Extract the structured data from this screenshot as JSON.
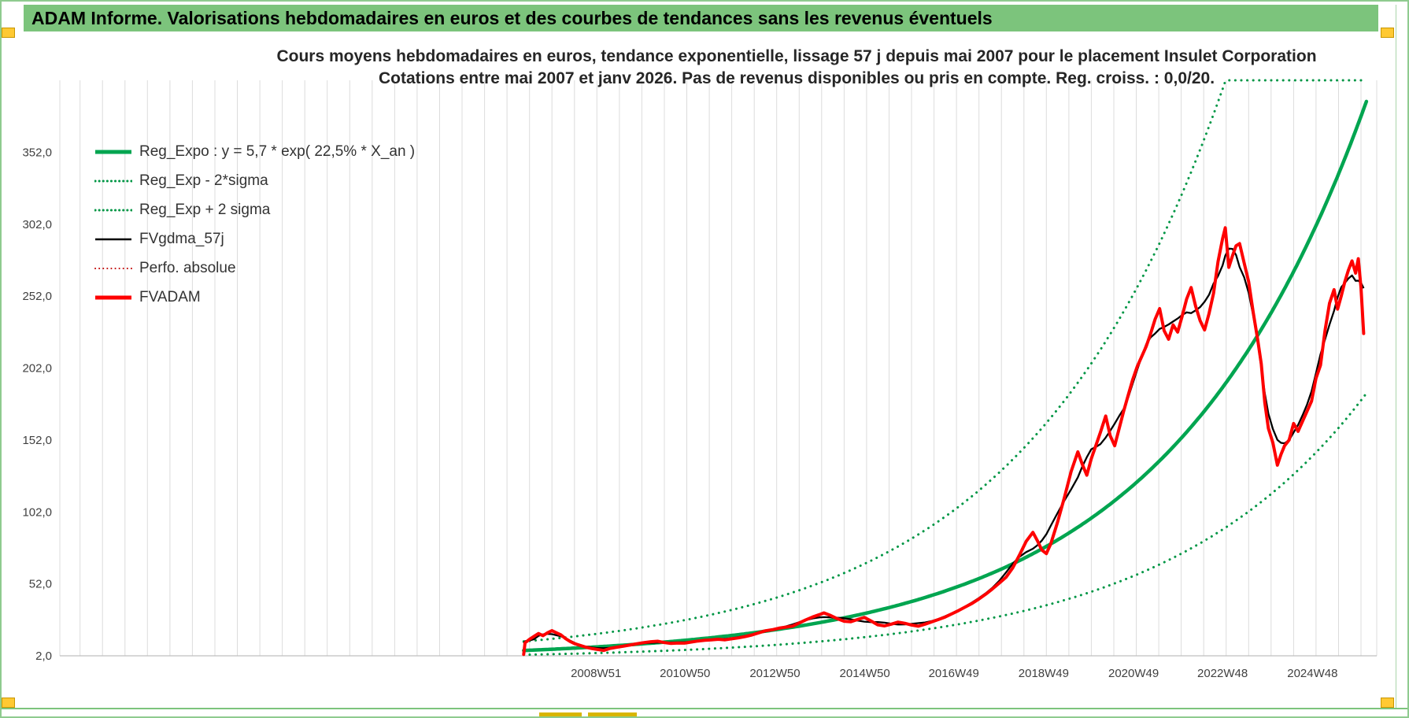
{
  "header": {
    "title": "ADAM Informe. Valorisations hebdomadaires en euros et des courbes de tendances sans les revenus éventuels"
  },
  "chart": {
    "title_line1": "Cours moyens hebdomadaires en euros, tendance exponentielle, lissage 57 j depuis mai 2007 pour le placement Insulet Corporation",
    "title_line2": "Cotations entre mai 2007 et janv 2026. Pas de revenus disponibles ou pris en compte. Reg. croiss. : 0,0/20.",
    "colors": {
      "header_bg": "#7CC47C",
      "regression": "#00A550",
      "sigma_band": "#009645",
      "fvgdma": "#000000",
      "perfo": "#C00000",
      "fvadam": "#FE0000",
      "grid": "#DCDCDC",
      "axis_line": "#BFBFBF",
      "axis_text": "#404040",
      "handle": "#FFC933"
    }
  },
  "chart_data": {
    "type": "line",
    "title": "Cours moyens hebdomadaires en euros, tendance exponentielle, lissage 57 j depuis mai 2007 pour le placement Insulet Corporation",
    "subtitle": "Cotations entre mai 2007 et janv 2026. Pas de revenus disponibles ou pris en compte. Reg. croiss. : 0,0/20.",
    "xlabel": "",
    "ylabel": "",
    "grid": "vertical-only",
    "legend_position": "top-left-inside",
    "x_axis": {
      "range": [
        1997.05,
        2026.35
      ],
      "gridline_step_years": 0.5,
      "ticks": [
        {
          "label": "2008W51",
          "year": 2008.98
        },
        {
          "label": "2010W50",
          "year": 2010.96
        },
        {
          "label": "2012W50",
          "year": 2012.96
        },
        {
          "label": "2014W50",
          "year": 2014.96
        },
        {
          "label": "2016W49",
          "year": 2016.94
        },
        {
          "label": "2018W49",
          "year": 2018.94
        },
        {
          "label": "2020W49",
          "year": 2020.94
        },
        {
          "label": "2022W48",
          "year": 2022.92
        },
        {
          "label": "2024W48",
          "year": 2024.92
        }
      ]
    },
    "y_axis": {
      "range": [
        2,
        402
      ],
      "ticks": [
        {
          "label": "2,0",
          "value": 2
        },
        {
          "label": "52,0",
          "value": 52
        },
        {
          "label": "102,0",
          "value": 102
        },
        {
          "label": "152,0",
          "value": 152
        },
        {
          "label": "202,0",
          "value": 202
        },
        {
          "label": "252,0",
          "value": 252
        },
        {
          "label": "302,0",
          "value": 302
        },
        {
          "label": "352,0",
          "value": 352
        }
      ]
    },
    "regression": {
      "name": "Reg_Expo",
      "formula": "y = 5,7 * exp( 22,5% *  X_an )",
      "base": 5.7,
      "annual_growth_rate": 0.225,
      "start_year": 2007.37,
      "end_year": 2026.12,
      "sigma_band_factor": 2.1
    },
    "legend": [
      {
        "label": "Reg_Expo : y = 5,7 * exp( 22,5% *  X_an )",
        "color": "#00A550",
        "style": "solid",
        "weight": 5
      },
      {
        "label": "Reg_Exp - 2*sigma",
        "color": "#009645",
        "style": "dotted",
        "weight": 3
      },
      {
        "label": "Reg_Exp + 2 sigma",
        "color": "#009645",
        "style": "dotted",
        "weight": 3
      },
      {
        "label": "FVgdma_57j",
        "color": "#000000",
        "style": "solid",
        "weight": 2.5
      },
      {
        "label": "Perfo. absolue",
        "color": "#C00000",
        "style": "dotted",
        "weight": 2
      },
      {
        "label": "FVADAM",
        "color": "#FE0000",
        "style": "solid",
        "weight": 5
      }
    ],
    "series": [
      {
        "name": "FVADAM",
        "color": "#FE0000",
        "style": "solid",
        "weight": 4,
        "points": [
          [
            2007.37,
            3
          ],
          [
            2007.4,
            11
          ],
          [
            2007.5,
            13.5
          ],
          [
            2007.6,
            15.5
          ],
          [
            2007.7,
            17.5
          ],
          [
            2007.8,
            16
          ],
          [
            2007.9,
            18
          ],
          [
            2008.0,
            19.5
          ],
          [
            2008.1,
            18
          ],
          [
            2008.2,
            16.5
          ],
          [
            2008.3,
            14
          ],
          [
            2008.4,
            12
          ],
          [
            2008.5,
            10.5
          ],
          [
            2008.6,
            9.5
          ],
          [
            2008.75,
            8
          ],
          [
            2008.9,
            7
          ],
          [
            2009.0,
            6.5
          ],
          [
            2009.15,
            5.7
          ],
          [
            2009.3,
            7.2
          ],
          [
            2009.45,
            8
          ],
          [
            2009.6,
            8.8
          ],
          [
            2009.75,
            9.6
          ],
          [
            2009.9,
            10.4
          ],
          [
            2010.05,
            11.2
          ],
          [
            2010.2,
            11.8
          ],
          [
            2010.35,
            12.1
          ],
          [
            2010.5,
            11.2
          ],
          [
            2010.65,
            10.6
          ],
          [
            2010.8,
            10.9
          ],
          [
            2010.95,
            10.8
          ],
          [
            2011.1,
            11.6
          ],
          [
            2011.25,
            12.3
          ],
          [
            2011.4,
            12.8
          ],
          [
            2011.55,
            13.1
          ],
          [
            2011.7,
            13.5
          ],
          [
            2011.85,
            13.1
          ],
          [
            2012.0,
            13.8
          ],
          [
            2012.15,
            14.5
          ],
          [
            2012.3,
            15.4
          ],
          [
            2012.45,
            16.5
          ],
          [
            2012.6,
            18
          ],
          [
            2012.75,
            19.4
          ],
          [
            2012.9,
            20.1
          ],
          [
            2013.05,
            21.2
          ],
          [
            2013.2,
            21.9
          ],
          [
            2013.35,
            22.6
          ],
          [
            2013.5,
            24.8
          ],
          [
            2013.65,
            27
          ],
          [
            2013.8,
            29
          ],
          [
            2013.95,
            30.6
          ],
          [
            2014.05,
            31.8
          ],
          [
            2014.2,
            30
          ],
          [
            2014.35,
            27.8
          ],
          [
            2014.5,
            26
          ],
          [
            2014.65,
            25.7
          ],
          [
            2014.8,
            27.2
          ],
          [
            2014.95,
            28.7
          ],
          [
            2015.1,
            26.2
          ],
          [
            2015.25,
            23.5
          ],
          [
            2015.4,
            22.8
          ],
          [
            2015.55,
            24
          ],
          [
            2015.7,
            25.4
          ],
          [
            2015.85,
            24.6
          ],
          [
            2016.0,
            23.4
          ],
          [
            2016.15,
            22.6
          ],
          [
            2016.3,
            24
          ],
          [
            2016.45,
            25.6
          ],
          [
            2016.6,
            27.2
          ],
          [
            2016.75,
            29
          ],
          [
            2016.9,
            31.2
          ],
          [
            2017.05,
            33.5
          ],
          [
            2017.2,
            36
          ],
          [
            2017.35,
            38.5
          ],
          [
            2017.5,
            41.5
          ],
          [
            2017.65,
            44.8
          ],
          [
            2017.8,
            48.5
          ],
          [
            2017.95,
            52.5
          ],
          [
            2018.1,
            56.5
          ],
          [
            2018.25,
            63
          ],
          [
            2018.4,
            72
          ],
          [
            2018.55,
            81.5
          ],
          [
            2018.7,
            87.8
          ],
          [
            2018.8,
            82
          ],
          [
            2018.9,
            75.5
          ],
          [
            2019.0,
            73
          ],
          [
            2019.1,
            80
          ],
          [
            2019.25,
            95
          ],
          [
            2019.4,
            112
          ],
          [
            2019.55,
            130
          ],
          [
            2019.7,
            143.8
          ],
          [
            2019.8,
            135
          ],
          [
            2019.9,
            127.5
          ],
          [
            2020.0,
            139
          ],
          [
            2020.1,
            148
          ],
          [
            2020.2,
            157
          ],
          [
            2020.32,
            168.7
          ],
          [
            2020.42,
            155
          ],
          [
            2020.52,
            148
          ],
          [
            2020.62,
            160
          ],
          [
            2020.72,
            172
          ],
          [
            2020.82,
            183
          ],
          [
            2020.92,
            194
          ],
          [
            2021.02,
            203
          ],
          [
            2021.12,
            210
          ],
          [
            2021.22,
            217
          ],
          [
            2021.32,
            226
          ],
          [
            2021.42,
            236
          ],
          [
            2021.52,
            243.3
          ],
          [
            2021.62,
            228
          ],
          [
            2021.72,
            222
          ],
          [
            2021.82,
            232
          ],
          [
            2021.92,
            227
          ],
          [
            2022.02,
            238
          ],
          [
            2022.12,
            250
          ],
          [
            2022.22,
            258
          ],
          [
            2022.32,
            245
          ],
          [
            2022.42,
            235
          ],
          [
            2022.52,
            228.5
          ],
          [
            2022.62,
            240
          ],
          [
            2022.72,
            254
          ],
          [
            2022.82,
            276
          ],
          [
            2022.92,
            292
          ],
          [
            2022.98,
            299.5
          ],
          [
            2023.06,
            272
          ],
          [
            2023.14,
            280
          ],
          [
            2023.22,
            287
          ],
          [
            2023.3,
            288.5
          ],
          [
            2023.4,
            275
          ],
          [
            2023.5,
            262
          ],
          [
            2023.6,
            241
          ],
          [
            2023.7,
            222
          ],
          [
            2023.78,
            205
          ],
          [
            2023.86,
            178
          ],
          [
            2023.94,
            160
          ],
          [
            2024.04,
            150
          ],
          [
            2024.14,
            134.5
          ],
          [
            2024.22,
            142
          ],
          [
            2024.3,
            148
          ],
          [
            2024.4,
            152
          ],
          [
            2024.5,
            163.5
          ],
          [
            2024.6,
            158
          ],
          [
            2024.7,
            165
          ],
          [
            2024.8,
            172
          ],
          [
            2024.9,
            179
          ],
          [
            2025.0,
            195
          ],
          [
            2025.1,
            204
          ],
          [
            2025.2,
            228
          ],
          [
            2025.3,
            247
          ],
          [
            2025.4,
            256.5
          ],
          [
            2025.48,
            243
          ],
          [
            2025.56,
            252
          ],
          [
            2025.64,
            262
          ],
          [
            2025.72,
            270
          ],
          [
            2025.8,
            276.5
          ],
          [
            2025.88,
            268
          ],
          [
            2025.94,
            278
          ],
          [
            2026.0,
            258
          ],
          [
            2026.06,
            226
          ]
        ]
      },
      {
        "name": "Perfo. absolue",
        "color": "#C00000",
        "style": "dotted",
        "weight": 1.6,
        "derive": "same-as-FVADAM"
      },
      {
        "name": "FVgdma_57j",
        "color": "#000000",
        "style": "solid",
        "weight": 2.3,
        "derive": "smoothed-FVADAM",
        "smoothing_window_points": 7
      }
    ]
  }
}
